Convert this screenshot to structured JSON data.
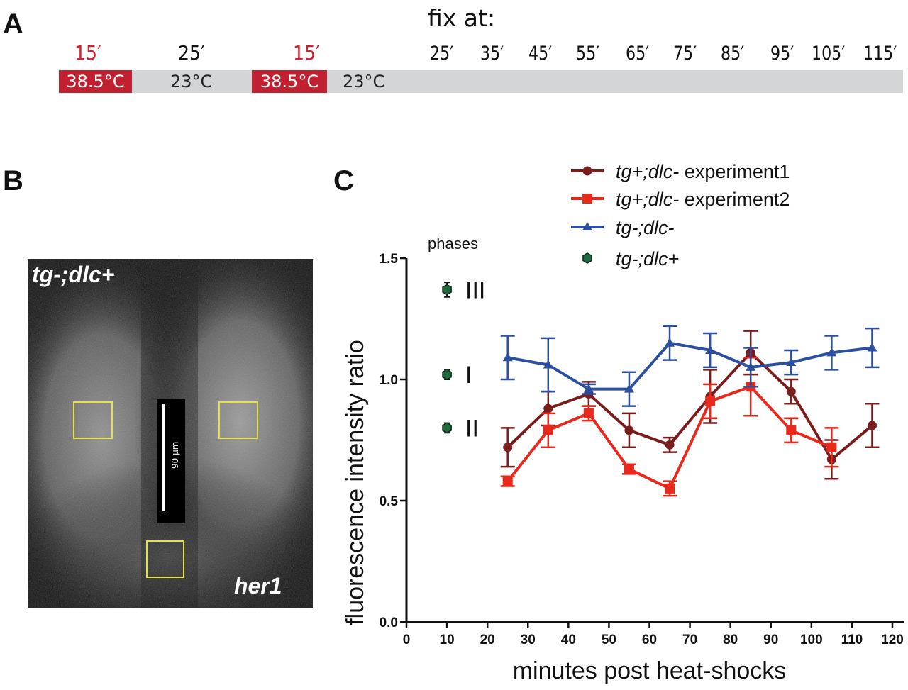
{
  "panels": {
    "a": "A",
    "b": "B",
    "c": "C"
  },
  "timeline": {
    "fix_label": "fix at:",
    "heat1": {
      "duration": "15′",
      "temp": "38.5°C"
    },
    "rest1": {
      "duration": "25′",
      "temp": "23°C"
    },
    "heat2": {
      "duration": "15′",
      "temp": "38.5°C"
    },
    "rest2": {
      "temp": "23°C"
    },
    "fix_times": [
      "25′",
      "35′",
      "45′",
      "55′",
      "65′",
      "75′",
      "85′",
      "95′",
      "105′",
      "115′"
    ],
    "colors": {
      "heat": "#c0202f",
      "rest": "#d4d5d7",
      "duration_red": "#d0202e"
    }
  },
  "micrograph": {
    "genotype": "tg-;dlc+",
    "probe": "her1",
    "scale_label": "90 μm",
    "roi_color": "#e4e24a"
  },
  "chart_data": {
    "type": "line",
    "xlabel": "minutes post heat-shocks",
    "ylabel": "fluorescence intensity ratio",
    "xlim": [
      0,
      120
    ],
    "ylim": [
      0.0,
      1.5
    ],
    "x_ticks": [
      "0",
      "10",
      "20",
      "30",
      "40",
      "50",
      "60",
      "70",
      "80",
      "90",
      "100",
      "110",
      "120"
    ],
    "y_ticks": [
      "0.0",
      "0.5",
      "1.0",
      "1.5"
    ],
    "grid": false,
    "legend_position": "top-right",
    "x": [
      25,
      35,
      45,
      55,
      65,
      75,
      85,
      95,
      105,
      115
    ],
    "series": [
      {
        "name": "tg+;dlc- experiment1",
        "name_italic": "tg+;dlc-",
        "name_plain": " experiment1",
        "color": "#7b1c1c",
        "marker": "circle",
        "values": [
          0.72,
          0.88,
          0.94,
          0.79,
          0.73,
          0.93,
          1.11,
          0.95,
          0.67,
          0.81
        ],
        "errors": [
          0.08,
          0.07,
          0.05,
          0.07,
          0.03,
          0.11,
          0.09,
          0.05,
          0.08,
          0.09
        ]
      },
      {
        "name": "tg+;dlc- experiment2",
        "name_italic": "tg+;dlc-",
        "name_plain": " experiment2",
        "color": "#e8291c",
        "marker": "square",
        "values": [
          0.58,
          0.79,
          0.86,
          0.63,
          0.55,
          0.91,
          0.97,
          0.79,
          0.72,
          null
        ],
        "errors": [
          0.02,
          0.07,
          0.03,
          0.02,
          0.03,
          0.07,
          0.12,
          0.05,
          0.08,
          null
        ]
      },
      {
        "name": "tg-;dlc-",
        "name_italic": "tg-;dlc-",
        "name_plain": "",
        "color": "#2d4fa0",
        "marker": "triangle",
        "values": [
          1.09,
          1.06,
          0.96,
          0.96,
          1.15,
          1.12,
          1.05,
          1.07,
          1.11,
          1.13
        ],
        "errors": [
          0.09,
          0.11,
          0.02,
          0.07,
          0.07,
          0.07,
          0.08,
          0.05,
          0.07,
          0.08
        ]
      }
    ],
    "phase_series": {
      "name": "tg-;dlc+",
      "name_italic": "tg-;dlc+",
      "color": "#1f6b3f",
      "title": "phases",
      "x": 10,
      "points": [
        {
          "label": "III",
          "value": 1.37,
          "error": 0.03
        },
        {
          "label": "I",
          "value": 1.02,
          "error": 0.02
        },
        {
          "label": "II",
          "value": 0.8,
          "error": 0.02
        }
      ]
    }
  }
}
